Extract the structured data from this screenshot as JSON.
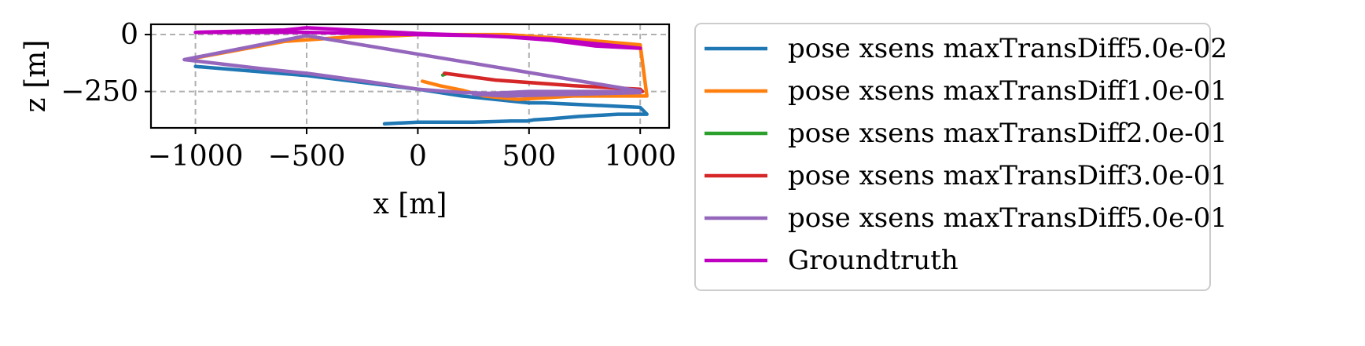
{
  "chart_data": {
    "type": "line",
    "xlabel": "x [m]",
    "ylabel": "z [m]",
    "xlim": [
      -1200,
      1130
    ],
    "ylim": [
      -410,
      45
    ],
    "xticks": [
      {
        "value": -1000,
        "label": "−1000"
      },
      {
        "value": -500,
        "label": "−500"
      },
      {
        "value": 0,
        "label": "0"
      },
      {
        "value": 500,
        "label": "500"
      },
      {
        "value": 1000,
        "label": "1000"
      }
    ],
    "yticks": [
      {
        "value": 0,
        "label": "0"
      },
      {
        "value": -250,
        "label": "−250"
      }
    ],
    "grid": true,
    "grid_style": "dashed",
    "legend_position": "outside-right",
    "series": [
      {
        "name": "pose xsens maxTransDiff5.0e-02",
        "color": "#1f77b4",
        "x": [
          -1000,
          -500,
          0,
          200,
          400,
          500,
          570,
          1000,
          1030,
          900,
          720,
          600,
          520,
          490,
          420,
          250,
          0,
          -150
        ],
        "y": [
          -140,
          -180,
          -240,
          -270,
          -290,
          -300,
          -300,
          -320,
          -350,
          -350,
          -360,
          -370,
          -375,
          -380,
          -380,
          -385,
          -385,
          -392
        ]
      },
      {
        "name": "pose xsens maxTransDiff1.0e-01",
        "color": "#ff7f0e",
        "x": [
          -1040,
          -600,
          -300,
          -100,
          0,
          200,
          400,
          700,
          1000,
          1030,
          700,
          450,
          300,
          200,
          100,
          20
        ],
        "y": [
          -110,
          -30,
          -10,
          -5,
          0,
          0,
          0,
          -20,
          -45,
          -270,
          -270,
          -285,
          -270,
          -245,
          -225,
          -205
        ]
      },
      {
        "name": "pose xsens maxTransDiff2.0e-01",
        "color": "#2ca02c",
        "x": [
          112,
          120,
          128
        ],
        "y": [
          -178,
          -175,
          -172
        ]
      },
      {
        "name": "pose xsens maxTransDiff3.0e-01",
        "color": "#d62728",
        "x": [
          120,
          350,
          700,
          1000,
          1010
        ],
        "y": [
          -170,
          -200,
          -225,
          -240,
          -250
        ]
      },
      {
        "name": "pose xsens maxTransDiff5.0e-01",
        "color": "#9467bd",
        "x": [
          -1050,
          -700,
          -500,
          -200,
          0,
          200,
          400,
          600,
          800,
          1000,
          600,
          400,
          250,
          500,
          900,
          1000,
          -500,
          -1050
        ],
        "y": [
          -110,
          -150,
          -170,
          -210,
          -240,
          -255,
          -260,
          -265,
          -258,
          -255,
          -265,
          -270,
          -262,
          -250,
          -250,
          -248,
          -5,
          -110
        ]
      },
      {
        "name": "Groundtruth",
        "color": "#c000c0",
        "x": [
          -1000,
          -600,
          -500,
          -300,
          0,
          200,
          400,
          600,
          800,
          1000,
          800,
          600,
          400,
          300,
          0,
          -500,
          -1000
        ],
        "y": [
          10,
          20,
          30,
          20,
          5,
          -2,
          -10,
          -20,
          -40,
          -60,
          -50,
          -25,
          -10,
          -5,
          0,
          10,
          10
        ]
      }
    ]
  }
}
